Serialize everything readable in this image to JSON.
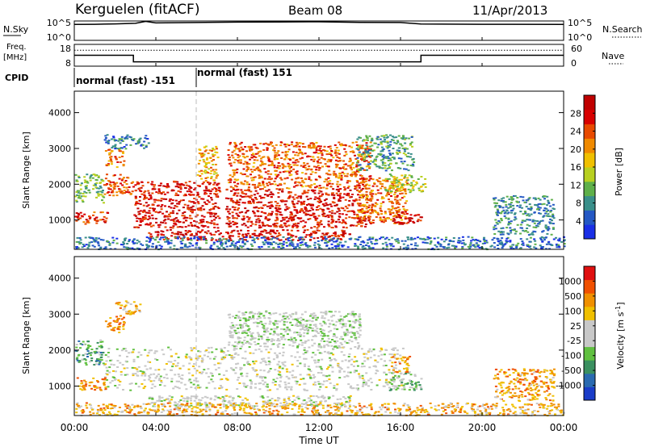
{
  "header": {
    "station": "Kerguelen (fitACF)",
    "beam": "Beam 08",
    "date": "11/Apr/2013"
  },
  "side_labels": {
    "nsky": "N.Sky",
    "nsearch": "N.Search",
    "freq_line1": "Freq.",
    "freq_line2": "[MHz]",
    "nave": "Nave",
    "cpid": "CPID"
  },
  "chart_data": [
    {
      "type": "line",
      "id": "noise",
      "y_left_ticks": [
        "10^5",
        "10^0"
      ],
      "y_right_ticks": [
        "10^5",
        "10^0"
      ],
      "series": [
        {
          "x": [
            0,
            1,
            2,
            3,
            3.5,
            4,
            6,
            8,
            10,
            12,
            13,
            14,
            16,
            17,
            20,
            24
          ],
          "values": [
            4.1,
            4.15,
            4.25,
            4.4,
            4.9,
            4.5,
            4.6,
            4.7,
            4.75,
            4.8,
            4.7,
            4.65,
            4.6,
            4.2,
            4.15,
            4.1
          ]
        }
      ]
    },
    {
      "type": "line",
      "id": "frequency",
      "y_left_ticks": [
        "18",
        "8"
      ],
      "y_right_ticks": [
        "60",
        "0"
      ],
      "series": [
        {
          "x": [
            0,
            2.9,
            2.9,
            17,
            17,
            24
          ],
          "values": [
            13,
            13,
            10,
            10,
            13,
            13
          ]
        },
        {
          "x": [
            0,
            24
          ],
          "values": [
            44,
            44
          ]
        }
      ]
    },
    {
      "type": "table",
      "id": "cpid",
      "segments": [
        {
          "label": "normal (fast) -151",
          "start": 0,
          "end": 6
        },
        {
          "label": "normal (fast) 151",
          "start": 6,
          "end": 24
        }
      ]
    },
    {
      "type": "heatmap",
      "id": "power",
      "ylabel": "Slant Range [km]",
      "ylim": [
        180,
        4600
      ],
      "y_ticks": [
        "1000",
        "2000",
        "3000",
        "4000"
      ],
      "x_range": [
        0,
        24
      ],
      "colorbar": {
        "label": "Power [dB]",
        "ticks": [
          "4",
          "8",
          "12",
          "16",
          "20",
          "24",
          "28"
        ],
        "colors": [
          "#1a2fe6",
          "#2458c4",
          "#3a8f8a",
          "#5fb04a",
          "#b8d020",
          "#f0c000",
          "#f08a00",
          "#e84a00",
          "#d80000",
          "#c00000"
        ]
      },
      "regions": [
        {
          "t0": 0.0,
          "t1": 1.6,
          "r0": 900,
          "r1": 1250,
          "v": 0.8
        },
        {
          "t0": 0.0,
          "t1": 1.4,
          "r0": 1500,
          "r1": 2300,
          "v": 0.35
        },
        {
          "t0": 1.4,
          "t1": 2.9,
          "r0": 1700,
          "r1": 2300,
          "v": 0.75
        },
        {
          "t0": 1.5,
          "t1": 2.4,
          "r0": 2500,
          "r1": 3000,
          "v": 0.7
        },
        {
          "t0": 1.4,
          "t1": 3.6,
          "r0": 3000,
          "r1": 3400,
          "v": 0.2
        },
        {
          "t0": 2.9,
          "t1": 7.1,
          "r0": 800,
          "r1": 2100,
          "v": 0.85
        },
        {
          "t0": 3.6,
          "t1": 10.5,
          "r0": 450,
          "r1": 750,
          "v": 0.88
        },
        {
          "t0": 7.4,
          "t1": 14.6,
          "r0": 800,
          "r1": 1900,
          "v": 0.85
        },
        {
          "t0": 7.5,
          "t1": 14.5,
          "r0": 1900,
          "r1": 3200,
          "v": 0.72
        },
        {
          "t0": 10.5,
          "t1": 13.5,
          "r0": 450,
          "r1": 750,
          "v": 0.88
        },
        {
          "t0": 13.8,
          "t1": 16.3,
          "r0": 900,
          "r1": 2200,
          "v": 0.7
        },
        {
          "t0": 15.2,
          "t1": 17.2,
          "r0": 1800,
          "r1": 2300,
          "v": 0.45
        },
        {
          "t0": 15.5,
          "t1": 17.0,
          "r0": 900,
          "r1": 1250,
          "v": 0.9
        },
        {
          "t0": 13.8,
          "t1": 16.6,
          "r0": 2400,
          "r1": 3400,
          "v": 0.3
        },
        {
          "t0": 6.0,
          "t1": 7.0,
          "r0": 2100,
          "r1": 3100,
          "v": 0.6
        },
        {
          "t0": 20.5,
          "t1": 23.5,
          "r0": 600,
          "r1": 1700,
          "v": 0.25
        },
        {
          "t0": 0.0,
          "t1": 24.0,
          "r0": 200,
          "r1": 550,
          "v": 0.18
        }
      ]
    },
    {
      "type": "heatmap",
      "id": "velocity",
      "ylabel": "Slant Range [km]",
      "ylim": [
        180,
        4600
      ],
      "y_ticks": [
        "1000",
        "2000",
        "3000",
        "4000"
      ],
      "x_range": [
        0,
        24
      ],
      "x_ticks": [
        "00:00",
        "04:00",
        "08:00",
        "12:00",
        "16:00",
        "20:00",
        "00:00"
      ],
      "xlabel": "Time UT",
      "colorbar": {
        "label": "Velocity [m s",
        "label_sup": "-1",
        "label_tail": "]",
        "ticks": [
          "1000",
          "500",
          "100",
          "25",
          "-25",
          "-100",
          "-500",
          "-1000"
        ],
        "colors": [
          "#1a3cc8",
          "#2a6ab0",
          "#3a9060",
          "#60c040",
          "#c8c8c8",
          "#c8c8c8",
          "#f0c000",
          "#f09000",
          "#f05000",
          "#e01010"
        ]
      },
      "regions": [
        {
          "t0": 1.4,
          "t1": 16.2,
          "r0": 900,
          "r1": 2100,
          "v": 0.5
        },
        {
          "t0": 3.6,
          "t1": 13.5,
          "r0": 450,
          "r1": 750,
          "v": 0.5
        },
        {
          "t0": 7.5,
          "t1": 14.0,
          "r0": 2100,
          "r1": 3100,
          "v": 0.45
        },
        {
          "t0": 0.0,
          "t1": 1.5,
          "r0": 900,
          "r1": 1250,
          "v": 0.75
        },
        {
          "t0": 0.0,
          "t1": 1.4,
          "r0": 1600,
          "r1": 2300,
          "v": 0.3
        },
        {
          "t0": 1.5,
          "t1": 2.5,
          "r0": 2500,
          "r1": 3000,
          "v": 0.75
        },
        {
          "t0": 2.0,
          "t1": 3.2,
          "r0": 3000,
          "r1": 3400,
          "v": 0.7
        },
        {
          "t0": 15.4,
          "t1": 17.0,
          "r0": 900,
          "r1": 1400,
          "v": 0.35
        },
        {
          "t0": 15.5,
          "t1": 16.5,
          "r0": 1400,
          "r1": 1900,
          "v": 0.72
        },
        {
          "t0": 20.5,
          "t1": 23.5,
          "r0": 600,
          "r1": 1500,
          "v": 0.72
        },
        {
          "t0": 0.0,
          "t1": 24.0,
          "r0": 200,
          "r1": 550,
          "v": 0.68
        }
      ]
    }
  ]
}
